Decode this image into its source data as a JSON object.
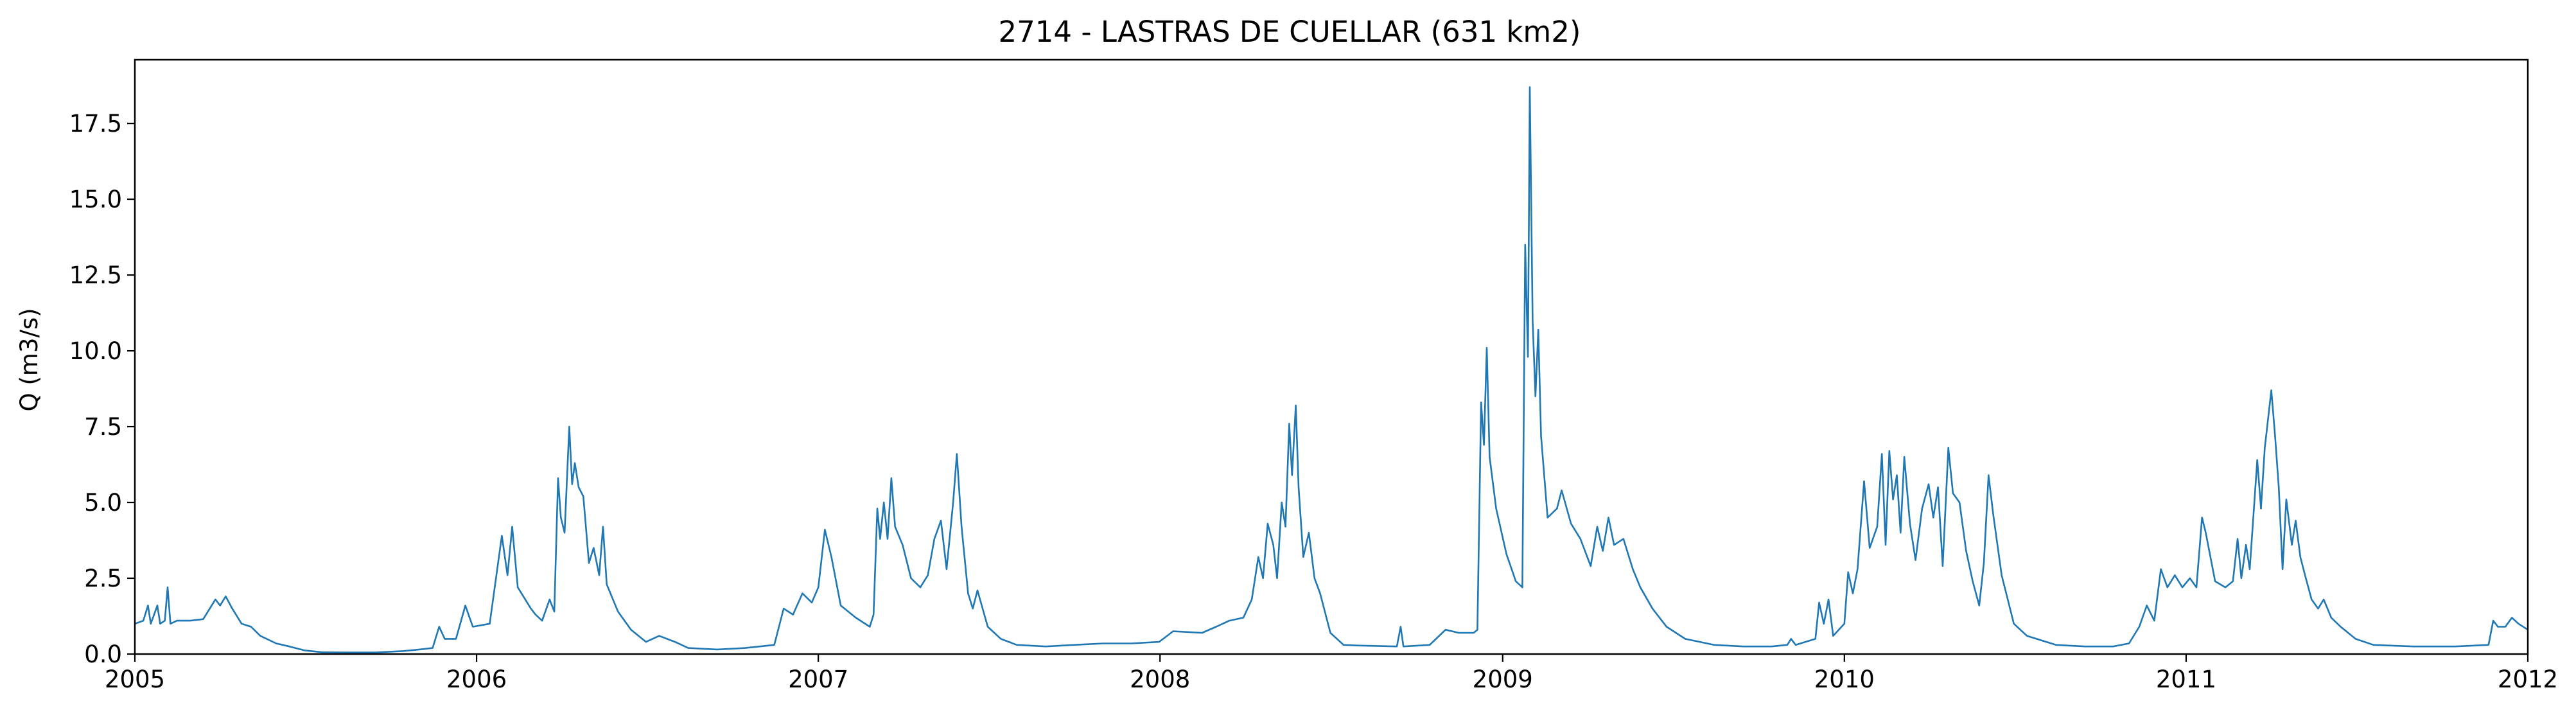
{
  "chart_data": {
    "type": "line",
    "title": "2714 - LASTRAS DE CUELLAR (631 km2)",
    "xlabel": "",
    "ylabel": "Q (m3/s)",
    "xlim": [
      "2005-01-01",
      "2012-01-01"
    ],
    "ylim": [
      0,
      19.6
    ],
    "x_ticks": [
      "2005",
      "2006",
      "2007",
      "2008",
      "2009",
      "2010",
      "2011",
      "2012"
    ],
    "y_ticks": [
      "0.0",
      "2.5",
      "5.0",
      "7.5",
      "10.0",
      "12.5",
      "15.0",
      "17.5"
    ],
    "grid": false,
    "series_color": "#1f77b4",
    "series": [
      {
        "points": [
          [
            "2005-01-01",
            1.0
          ],
          [
            "2005-01-10",
            1.1
          ],
          [
            "2005-01-15",
            1.6
          ],
          [
            "2005-01-18",
            1.0
          ],
          [
            "2005-01-25",
            1.6
          ],
          [
            "2005-01-28",
            1.0
          ],
          [
            "2005-02-02",
            1.1
          ],
          [
            "2005-02-05",
            2.2
          ],
          [
            "2005-02-08",
            1.0
          ],
          [
            "2005-02-15",
            1.1
          ],
          [
            "2005-03-01",
            1.1
          ],
          [
            "2005-03-15",
            1.15
          ],
          [
            "2005-03-20",
            1.4
          ],
          [
            "2005-03-28",
            1.8
          ],
          [
            "2005-04-02",
            1.6
          ],
          [
            "2005-04-08",
            1.9
          ],
          [
            "2005-04-15",
            1.5
          ],
          [
            "2005-04-25",
            1.0
          ],
          [
            "2005-05-05",
            0.9
          ],
          [
            "2005-05-15",
            0.6
          ],
          [
            "2005-06-01",
            0.35
          ],
          [
            "2005-06-15",
            0.25
          ],
          [
            "2005-07-01",
            0.12
          ],
          [
            "2005-07-20",
            0.06
          ],
          [
            "2005-08-15",
            0.05
          ],
          [
            "2005-09-15",
            0.05
          ],
          [
            "2005-10-15",
            0.1
          ],
          [
            "2005-11-01",
            0.15
          ],
          [
            "2005-11-15",
            0.2
          ],
          [
            "2005-11-22",
            0.9
          ],
          [
            "2005-11-28",
            0.5
          ],
          [
            "2005-12-10",
            0.5
          ],
          [
            "2005-12-20",
            1.6
          ],
          [
            "2005-12-28",
            0.9
          ],
          [
            "2006-01-15",
            1.0
          ],
          [
            "2006-01-28",
            3.9
          ],
          [
            "2006-02-03",
            2.6
          ],
          [
            "2006-02-08",
            4.2
          ],
          [
            "2006-02-14",
            2.2
          ],
          [
            "2006-02-28",
            1.5
          ],
          [
            "2006-03-05",
            1.3
          ],
          [
            "2006-03-12",
            1.1
          ],
          [
            "2006-03-20",
            1.8
          ],
          [
            "2006-03-25",
            1.4
          ],
          [
            "2006-03-29",
            5.8
          ],
          [
            "2006-04-01",
            4.5
          ],
          [
            "2006-04-05",
            4.0
          ],
          [
            "2006-04-10",
            7.5
          ],
          [
            "2006-04-13",
            5.6
          ],
          [
            "2006-04-16",
            6.3
          ],
          [
            "2006-04-20",
            5.5
          ],
          [
            "2006-04-25",
            5.2
          ],
          [
            "2006-05-01",
            3.0
          ],
          [
            "2006-05-06",
            3.5
          ],
          [
            "2006-05-12",
            2.6
          ],
          [
            "2006-05-16",
            4.2
          ],
          [
            "2006-05-20",
            2.3
          ],
          [
            "2006-06-01",
            1.4
          ],
          [
            "2006-06-15",
            0.8
          ],
          [
            "2006-07-01",
            0.4
          ],
          [
            "2006-07-15",
            0.6
          ],
          [
            "2006-08-01",
            0.4
          ],
          [
            "2006-08-15",
            0.2
          ],
          [
            "2006-09-15",
            0.15
          ],
          [
            "2006-10-15",
            0.2
          ],
          [
            "2006-11-15",
            0.3
          ],
          [
            "2006-11-25",
            1.5
          ],
          [
            "2006-12-05",
            1.3
          ],
          [
            "2006-12-15",
            2.0
          ],
          [
            "2006-12-25",
            1.7
          ],
          [
            "2007-01-01",
            2.2
          ],
          [
            "2007-01-08",
            4.1
          ],
          [
            "2007-01-15",
            3.2
          ],
          [
            "2007-01-25",
            1.6
          ],
          [
            "2007-02-10",
            1.2
          ],
          [
            "2007-02-25",
            0.9
          ],
          [
            "2007-03-01",
            1.3
          ],
          [
            "2007-03-05",
            4.8
          ],
          [
            "2007-03-08",
            3.8
          ],
          [
            "2007-03-12",
            5.0
          ],
          [
            "2007-03-16",
            3.8
          ],
          [
            "2007-03-20",
            5.8
          ],
          [
            "2007-03-24",
            4.2
          ],
          [
            "2007-04-01",
            3.6
          ],
          [
            "2007-04-10",
            2.5
          ],
          [
            "2007-04-20",
            2.2
          ],
          [
            "2007-04-28",
            2.6
          ],
          [
            "2007-05-05",
            3.8
          ],
          [
            "2007-05-12",
            4.4
          ],
          [
            "2007-05-18",
            2.8
          ],
          [
            "2007-05-25",
            5.0
          ],
          [
            "2007-05-29",
            6.6
          ],
          [
            "2007-06-03",
            4.2
          ],
          [
            "2007-06-10",
            2.0
          ],
          [
            "2007-06-15",
            1.5
          ],
          [
            "2007-06-20",
            2.1
          ],
          [
            "2007-07-01",
            0.9
          ],
          [
            "2007-07-15",
            0.5
          ],
          [
            "2007-08-01",
            0.3
          ],
          [
            "2007-09-01",
            0.25
          ],
          [
            "2007-10-01",
            0.3
          ],
          [
            "2007-11-01",
            0.35
          ],
          [
            "2007-12-01",
            0.35
          ],
          [
            "2007-12-31",
            0.4
          ],
          [
            "2008-01-15",
            0.75
          ],
          [
            "2008-02-15",
            0.7
          ],
          [
            "2008-03-01",
            0.9
          ],
          [
            "2008-03-15",
            1.1
          ],
          [
            "2008-03-30",
            1.2
          ],
          [
            "2008-04-08",
            1.8
          ],
          [
            "2008-04-15",
            3.2
          ],
          [
            "2008-04-20",
            2.5
          ],
          [
            "2008-04-25",
            4.3
          ],
          [
            "2008-05-01",
            3.6
          ],
          [
            "2008-05-05",
            2.5
          ],
          [
            "2008-05-10",
            5.0
          ],
          [
            "2008-05-14",
            4.2
          ],
          [
            "2008-05-18",
            7.6
          ],
          [
            "2008-05-21",
            5.9
          ],
          [
            "2008-05-25",
            8.2
          ],
          [
            "2008-05-28",
            5.5
          ],
          [
            "2008-06-02",
            3.2
          ],
          [
            "2008-06-08",
            4.0
          ],
          [
            "2008-06-14",
            2.5
          ],
          [
            "2008-06-20",
            2.0
          ],
          [
            "2008-07-01",
            0.7
          ],
          [
            "2008-07-15",
            0.3
          ],
          [
            "2008-08-01",
            0.28
          ],
          [
            "2008-09-10",
            0.25
          ],
          [
            "2008-09-14",
            0.9
          ],
          [
            "2008-09-17",
            0.25
          ],
          [
            "2008-10-15",
            0.3
          ],
          [
            "2008-11-01",
            0.8
          ],
          [
            "2008-11-15",
            0.7
          ],
          [
            "2008-12-01",
            0.7
          ],
          [
            "2008-12-05",
            0.8
          ],
          [
            "2008-12-09",
            8.3
          ],
          [
            "2008-12-12",
            6.9
          ],
          [
            "2008-12-15",
            10.1
          ],
          [
            "2008-12-18",
            6.5
          ],
          [
            "2008-12-25",
            4.8
          ],
          [
            "2009-01-05",
            3.3
          ],
          [
            "2009-01-15",
            2.4
          ],
          [
            "2009-01-22",
            2.2
          ],
          [
            "2009-01-25",
            13.5
          ],
          [
            "2009-01-28",
            9.8
          ],
          [
            "2009-01-30",
            18.7
          ],
          [
            "2009-02-02",
            11.0
          ],
          [
            "2009-02-05",
            8.5
          ],
          [
            "2009-02-08",
            10.7
          ],
          [
            "2009-02-11",
            7.2
          ],
          [
            "2009-02-18",
            4.5
          ],
          [
            "2009-02-28",
            4.8
          ],
          [
            "2009-03-05",
            5.4
          ],
          [
            "2009-03-15",
            4.3
          ],
          [
            "2009-03-25",
            3.8
          ],
          [
            "2009-04-05",
            2.9
          ],
          [
            "2009-04-12",
            4.2
          ],
          [
            "2009-04-18",
            3.4
          ],
          [
            "2009-04-24",
            4.5
          ],
          [
            "2009-04-30",
            3.6
          ],
          [
            "2009-05-10",
            3.8
          ],
          [
            "2009-05-20",
            2.8
          ],
          [
            "2009-05-28",
            2.2
          ],
          [
            "2009-06-10",
            1.5
          ],
          [
            "2009-06-25",
            0.9
          ],
          [
            "2009-07-15",
            0.5
          ],
          [
            "2009-08-15",
            0.3
          ],
          [
            "2009-09-15",
            0.25
          ],
          [
            "2009-10-15",
            0.25
          ],
          [
            "2009-11-01",
            0.3
          ],
          [
            "2009-11-05",
            0.5
          ],
          [
            "2009-11-10",
            0.3
          ],
          [
            "2009-12-01",
            0.5
          ],
          [
            "2009-12-05",
            1.7
          ],
          [
            "2009-12-10",
            1.0
          ],
          [
            "2009-12-15",
            1.8
          ],
          [
            "2009-12-20",
            0.6
          ],
          [
            "2010-01-01",
            1.0
          ],
          [
            "2010-01-05",
            2.7
          ],
          [
            "2010-01-10",
            2.0
          ],
          [
            "2010-01-15",
            2.8
          ],
          [
            "2010-01-22",
            5.7
          ],
          [
            "2010-01-28",
            3.5
          ],
          [
            "2010-02-05",
            4.2
          ],
          [
            "2010-02-10",
            6.6
          ],
          [
            "2010-02-14",
            3.6
          ],
          [
            "2010-02-18",
            6.7
          ],
          [
            "2010-02-22",
            5.1
          ],
          [
            "2010-02-26",
            5.9
          ],
          [
            "2010-03-02",
            4.0
          ],
          [
            "2010-03-06",
            6.5
          ],
          [
            "2010-03-12",
            4.3
          ],
          [
            "2010-03-18",
            3.1
          ],
          [
            "2010-03-25",
            4.8
          ],
          [
            "2010-04-01",
            5.6
          ],
          [
            "2010-04-06",
            4.5
          ],
          [
            "2010-04-11",
            5.5
          ],
          [
            "2010-04-16",
            2.9
          ],
          [
            "2010-04-22",
            6.8
          ],
          [
            "2010-04-27",
            5.3
          ],
          [
            "2010-05-04",
            5.0
          ],
          [
            "2010-05-11",
            3.4
          ],
          [
            "2010-05-18",
            2.4
          ],
          [
            "2010-05-25",
            1.6
          ],
          [
            "2010-05-30",
            3.0
          ],
          [
            "2010-06-04",
            5.9
          ],
          [
            "2010-06-09",
            4.6
          ],
          [
            "2010-06-18",
            2.6
          ],
          [
            "2010-07-01",
            1.0
          ],
          [
            "2010-07-15",
            0.6
          ],
          [
            "2010-08-15",
            0.3
          ],
          [
            "2010-09-15",
            0.25
          ],
          [
            "2010-10-15",
            0.25
          ],
          [
            "2010-11-01",
            0.35
          ],
          [
            "2010-11-12",
            0.9
          ],
          [
            "2010-11-20",
            1.6
          ],
          [
            "2010-11-28",
            1.1
          ],
          [
            "2010-12-05",
            2.8
          ],
          [
            "2010-12-12",
            2.2
          ],
          [
            "2010-12-20",
            2.6
          ],
          [
            "2010-12-28",
            2.2
          ],
          [
            "2011-01-05",
            2.5
          ],
          [
            "2011-01-12",
            2.2
          ],
          [
            "2011-01-18",
            4.5
          ],
          [
            "2011-01-22",
            4.0
          ],
          [
            "2011-02-01",
            2.4
          ],
          [
            "2011-02-12",
            2.2
          ],
          [
            "2011-02-20",
            2.4
          ],
          [
            "2011-02-25",
            3.8
          ],
          [
            "2011-03-01",
            2.5
          ],
          [
            "2011-03-06",
            3.6
          ],
          [
            "2011-03-10",
            2.8
          ],
          [
            "2011-03-18",
            6.4
          ],
          [
            "2011-03-22",
            4.8
          ],
          [
            "2011-03-26",
            6.8
          ],
          [
            "2011-04-02",
            8.7
          ],
          [
            "2011-04-06",
            7.2
          ],
          [
            "2011-04-10",
            5.5
          ],
          [
            "2011-04-14",
            2.8
          ],
          [
            "2011-04-18",
            5.1
          ],
          [
            "2011-04-24",
            3.6
          ],
          [
            "2011-04-28",
            4.4
          ],
          [
            "2011-05-03",
            3.2
          ],
          [
            "2011-05-08",
            2.6
          ],
          [
            "2011-05-15",
            1.8
          ],
          [
            "2011-05-22",
            1.5
          ],
          [
            "2011-05-28",
            1.8
          ],
          [
            "2011-06-05",
            1.2
          ],
          [
            "2011-06-15",
            0.9
          ],
          [
            "2011-07-01",
            0.5
          ],
          [
            "2011-07-20",
            0.3
          ],
          [
            "2011-09-01",
            0.25
          ],
          [
            "2011-10-15",
            0.25
          ],
          [
            "2011-11-20",
            0.3
          ],
          [
            "2011-11-25",
            1.1
          ],
          [
            "2011-11-30",
            0.9
          ],
          [
            "2011-12-08",
            0.9
          ],
          [
            "2011-12-15",
            1.2
          ],
          [
            "2011-12-22",
            1.0
          ],
          [
            "2012-01-01",
            0.8
          ]
        ]
      }
    ]
  }
}
